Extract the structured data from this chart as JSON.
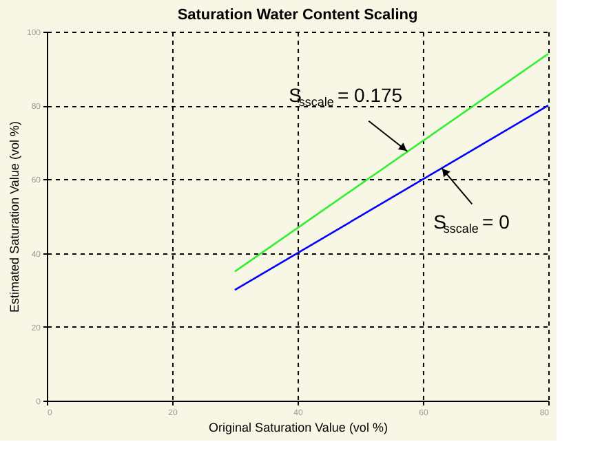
{
  "chart_data": {
    "type": "line",
    "title": "Saturation Water Content Scaling",
    "xlabel": "Original Saturation Value (vol %)",
    "ylabel": "Estimated Saturation Value (vol %)",
    "x": [
      30,
      80
    ],
    "series": [
      {
        "values": [
          35,
          94
        ],
        "color": "#33ee33"
      },
      {
        "values": [
          30,
          80
        ],
        "color": "#0000ff"
      }
    ],
    "xlim": [
      0,
      80
    ],
    "xticks": [
      0,
      20,
      40,
      60,
      80
    ],
    "ylim": [
      0,
      100
    ],
    "yticks": [
      0,
      20,
      40,
      60,
      80,
      100
    ],
    "grid": true,
    "line_style": "solid",
    "marker": "none",
    "annotations": [
      {
        "text": "S$_{sscale}$ = 0.175",
        "x": 57.5,
        "y": 67.6
      },
      {
        "text": "S$_{sscale}$ = 0",
        "x": 63,
        "y": 63
      }
    ]
  }
}
